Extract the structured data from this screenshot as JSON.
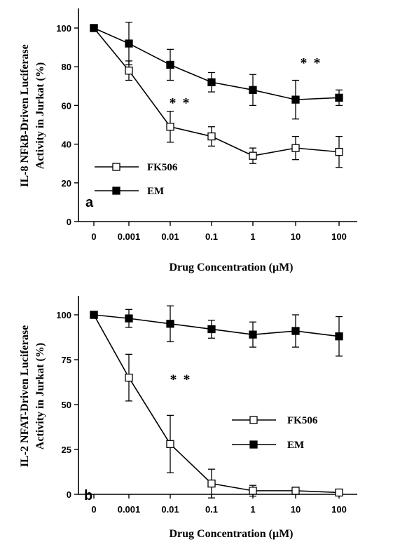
{
  "chart_data": [
    {
      "type": "line",
      "panel_label": "a",
      "ylabel_lines": [
        "IL-8 NFkB-Driven Luciferase",
        "Activity in Jurkat  (%)"
      ],
      "xlabel": "Drug Concentration (μM)",
      "x_categories": [
        "0",
        "0.001",
        "0.01",
        "0.1",
        "1",
        "10",
        "100"
      ],
      "yticks": [
        "0",
        "20",
        "40",
        "60",
        "80",
        "100"
      ],
      "ylim": [
        0,
        110
      ],
      "legend": {
        "placement": "lower-left"
      },
      "series": [
        {
          "name": "FK506",
          "marker": "open-square",
          "values": [
            100,
            78,
            49,
            44,
            34,
            38,
            36
          ],
          "errors": [
            0,
            5,
            8,
            5,
            4,
            6,
            8
          ]
        },
        {
          "name": "EM",
          "marker": "filled-square",
          "values": [
            100,
            92,
            81,
            72,
            68,
            63,
            64
          ],
          "errors": [
            0,
            11,
            8,
            5,
            8,
            10,
            4
          ]
        }
      ],
      "annotations": [
        {
          "text": "**",
          "x_index": 2,
          "y": 49
        },
        {
          "text": "**",
          "x_index": 5,
          "y": 63
        }
      ]
    },
    {
      "type": "line",
      "panel_label": "b",
      "ylabel_lines": [
        "IL-2 NFAT-Driven Luciferase",
        "Activity in Jurkat  (%)"
      ],
      "xlabel": "Drug Concentration (μM)",
      "x_categories": [
        "0",
        "0.001",
        "0.01",
        "0.1",
        "1",
        "10",
        "100"
      ],
      "yticks": [
        "0",
        "25",
        "50",
        "75",
        "100"
      ],
      "ylim": [
        0,
        110
      ],
      "legend": {
        "placement": "center-right"
      },
      "series": [
        {
          "name": "FK506",
          "marker": "open-square",
          "values": [
            100,
            65,
            28,
            6,
            2,
            2,
            1
          ],
          "errors": [
            0,
            13,
            16,
            8,
            3,
            2,
            1
          ]
        },
        {
          "name": "EM",
          "marker": "filled-square",
          "values": [
            100,
            98,
            95,
            92,
            89,
            91,
            88
          ],
          "errors": [
            0,
            5,
            10,
            5,
            7,
            9,
            11
          ]
        }
      ],
      "annotations": [
        {
          "text": "**",
          "x_index": 2,
          "y": 28
        }
      ]
    }
  ]
}
